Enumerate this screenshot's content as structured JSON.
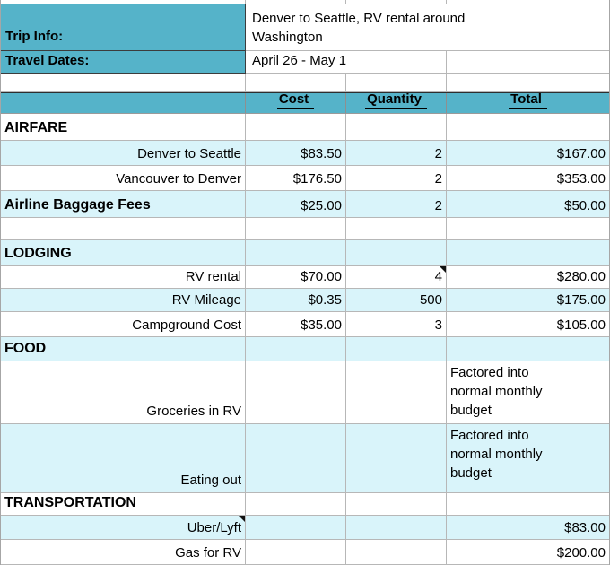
{
  "colors": {
    "teal": "#55b3c9",
    "row_blue": "#d9f4fa",
    "grid": "#b7b7b7",
    "dark_border": "#3c3c3c",
    "text": "#000000"
  },
  "top": {
    "trip_label": "Trip Info:",
    "trip_value": "Denver to Seattle, RV rental around Washington",
    "dates_label": "Travel Dates:",
    "dates_value": "April 26 - May 1"
  },
  "header": {
    "cost": "Cost",
    "quantity": "Quantity",
    "total": "Total"
  },
  "rows": [
    {
      "kind": "section",
      "shade": "white",
      "label": "AIRFARE",
      "cost": "",
      "quantity": "",
      "total": ""
    },
    {
      "kind": "item",
      "shade": "blue",
      "label": "Denver to Seattle",
      "cost": "$83.50",
      "quantity": "2",
      "total": "$167.00"
    },
    {
      "kind": "item",
      "shade": "white",
      "label": "Vancouver to Denver",
      "cost": "$176.50",
      "quantity": "2",
      "total": "$353.00"
    },
    {
      "kind": "section",
      "shade": "blue",
      "label": "Airline Baggage Fees",
      "cost": "$25.00",
      "quantity": "2",
      "total": "$50.00"
    },
    {
      "kind": "blank",
      "shade": "white",
      "label": "",
      "cost": "",
      "quantity": "",
      "total": ""
    },
    {
      "kind": "section",
      "shade": "blue",
      "label": "LODGING",
      "cost": "",
      "quantity": "",
      "total": ""
    },
    {
      "kind": "item",
      "shade": "white",
      "label": "RV rental",
      "cost": "$70.00",
      "quantity": "4",
      "total": "$280.00",
      "note_marker": "quantity"
    },
    {
      "kind": "item",
      "shade": "blue",
      "label": "RV Mileage",
      "cost": "$0.35",
      "quantity": "500",
      "total": "$175.00"
    },
    {
      "kind": "item",
      "shade": "white",
      "label": "Campground Cost",
      "cost": "$35.00",
      "quantity": "3",
      "total": "$105.00"
    },
    {
      "kind": "section",
      "shade": "blue",
      "label": "FOOD",
      "cost": "",
      "quantity": "",
      "total": ""
    },
    {
      "kind": "item",
      "shade": "white",
      "label": "Groceries in RV",
      "cost": "",
      "quantity": "",
      "total": "Factored into normal monthly budget",
      "tall": true,
      "total_wrap": true
    },
    {
      "kind": "item",
      "shade": "blue",
      "label": "Eating out",
      "cost": "",
      "quantity": "",
      "total": "Factored into normal monthly budget",
      "tall": true,
      "total_wrap": true
    },
    {
      "kind": "section",
      "shade": "white",
      "label": "TRANSPORTATION",
      "cost": "",
      "quantity": "",
      "total": ""
    },
    {
      "kind": "item",
      "shade": "blue",
      "label": "Uber/Lyft",
      "cost": "",
      "quantity": "",
      "total": "$83.00",
      "note_marker": "label"
    },
    {
      "kind": "item",
      "shade": "white",
      "label": "Gas for RV",
      "cost": "",
      "quantity": "",
      "total": "$200.00"
    }
  ]
}
